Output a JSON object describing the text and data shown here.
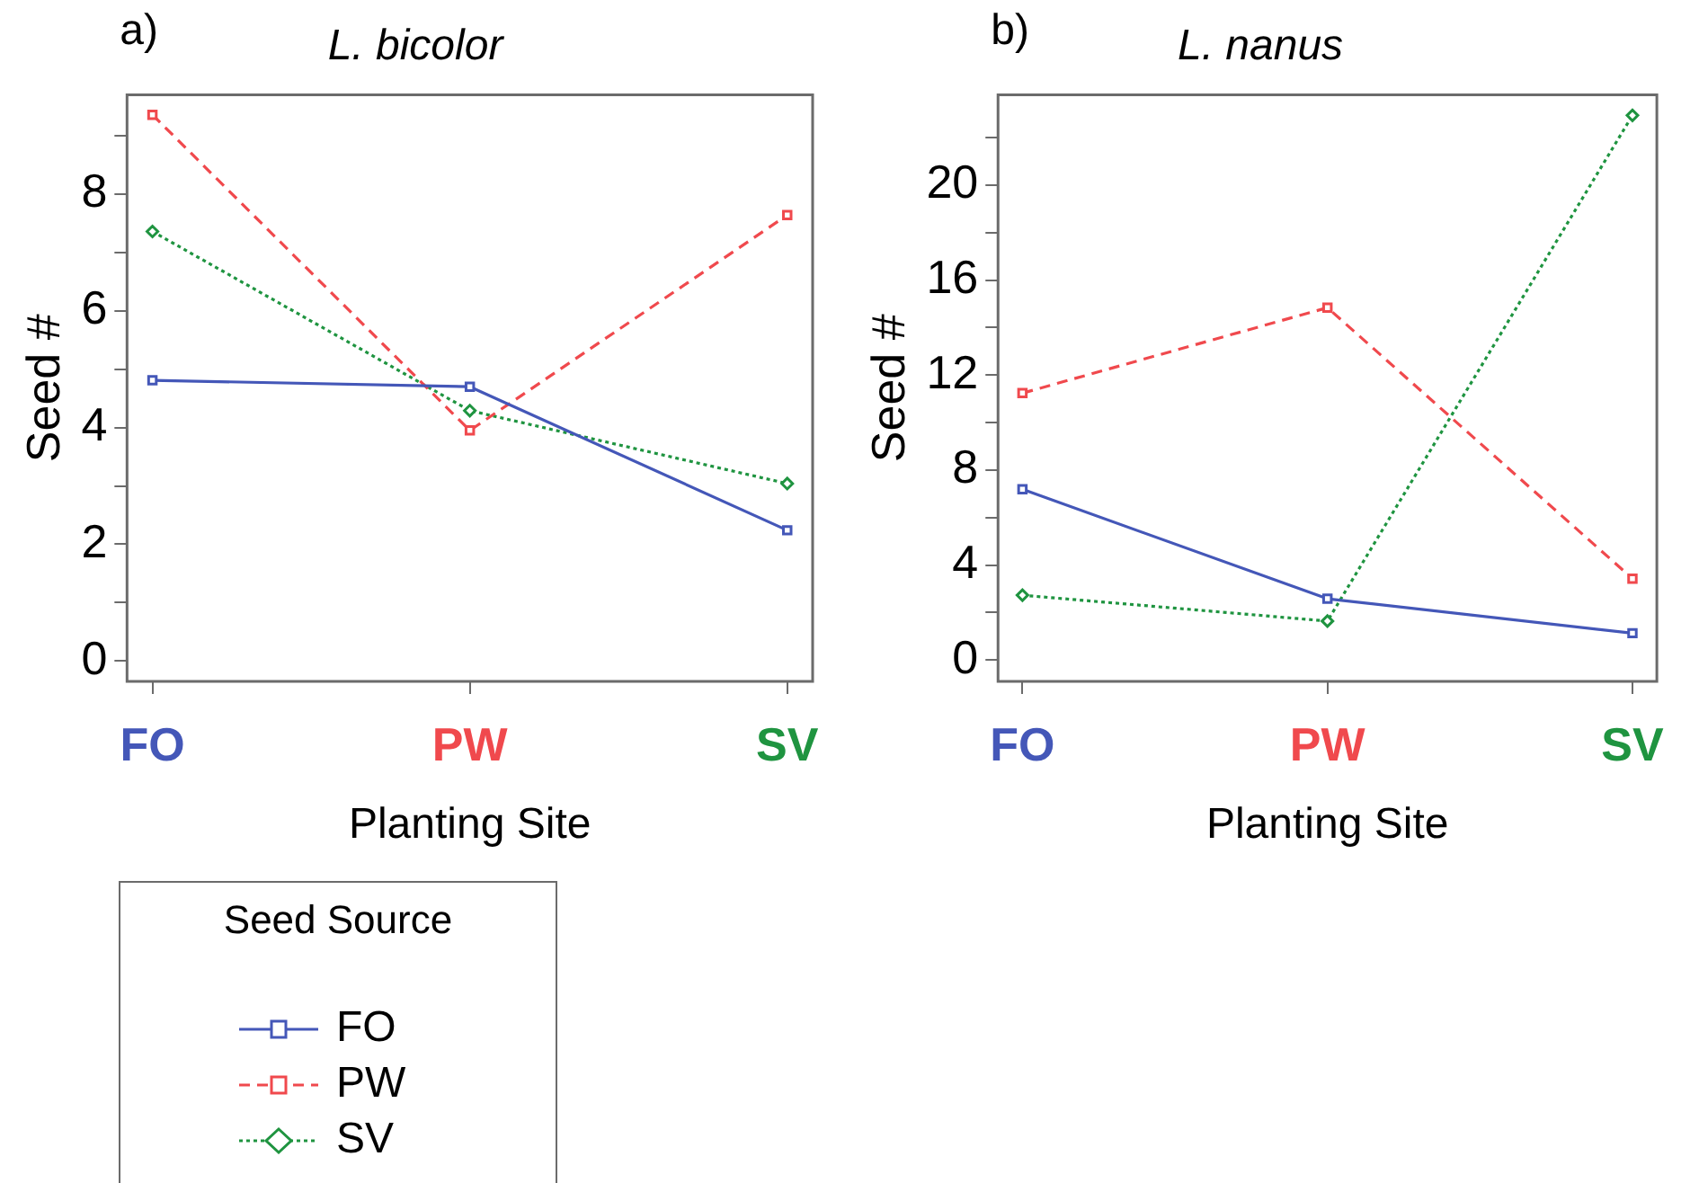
{
  "chart_data": [
    {
      "type": "line",
      "title": "L. bicolor",
      "annotations": [
        "a)"
      ],
      "xlabel": "Planting Site",
      "ylabel": "Seed #",
      "legend_title": "Seed Source",
      "legend": "bottom left",
      "grid": false,
      "categories": [
        "FO",
        "PW",
        "SV"
      ],
      "ylim": [
        -0.35,
        9.7
      ],
      "yticks": [
        0,
        {
          "value": 1,
          "label": null
        },
        2,
        {
          "value": 3,
          "label": null
        },
        4,
        {
          "value": 5,
          "label": null
        },
        6,
        {
          "value": 7,
          "label": null
        },
        8,
        {
          "value": 9,
          "label": null
        }
      ],
      "series": [
        {
          "name": "FO",
          "color": "#4457b8",
          "marker": "square",
          "line_style": "solid",
          "values": [
            4.81,
            4.7,
            2.24
          ]
        },
        {
          "name": "PW",
          "color": "#f0494d",
          "marker": "square",
          "line_style": "dashed",
          "values": [
            9.36,
            3.95,
            7.64
          ]
        },
        {
          "name": "SV",
          "color": "#1f9440",
          "marker": "diamond",
          "line_style": "dotted",
          "values": [
            7.36,
            4.29,
            3.04
          ]
        }
      ]
    },
    {
      "type": "line",
      "title": "L. nanus",
      "annotations": [
        "b)"
      ],
      "xlabel": "Planting Site",
      "ylabel": "Seed #",
      "legend": false,
      "grid": false,
      "categories": [
        "FO",
        "PW",
        "SV"
      ],
      "ylim": [
        -0.9,
        23.8
      ],
      "yticks": [
        0,
        {
          "value": 2,
          "label": null
        },
        4,
        {
          "value": 6,
          "label": null
        },
        8,
        {
          "value": 10,
          "label": null
        },
        12,
        {
          "value": 14,
          "label": null
        },
        16,
        {
          "value": 18,
          "label": null
        },
        20,
        {
          "value": 22,
          "label": null
        }
      ],
      "series": [
        {
          "color": "#4457b8",
          "marker": "square",
          "line_style": "solid",
          "values": [
            7.19,
            2.58,
            1.13
          ]
        },
        {
          "color": "#f0494d",
          "marker": "square",
          "line_style": "dashed",
          "values": [
            11.24,
            14.84,
            3.43
          ]
        },
        {
          "color": "#1f9440",
          "marker": "diamond",
          "line_style": "dotted",
          "values": [
            2.73,
            1.64,
            22.94
          ]
        }
      ]
    }
  ]
}
